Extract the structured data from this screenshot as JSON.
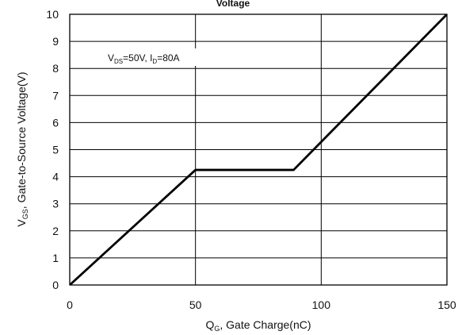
{
  "chart_data": {
    "type": "line",
    "title": "Voltage",
    "xlabel": "Q",
    "xlabel_sub": "G",
    "xlabel_rest": ", Gate Charge(nC)",
    "ylabel": "V",
    "ylabel_sub": "GS",
    "ylabel_rest": ", Gate-to-Source Voltage(V)",
    "xlim": [
      0,
      150
    ],
    "ylim": [
      0,
      10
    ],
    "xticks": [
      0,
      50,
      100,
      150
    ],
    "yticks": [
      0,
      1,
      2,
      3,
      4,
      5,
      6,
      7,
      8,
      9,
      10
    ],
    "grid": true,
    "annotation": {
      "main1": "V",
      "sub1": "DS",
      "main2": "=50V, I",
      "sub2": "D",
      "main3": "=80A"
    },
    "series": [
      {
        "x": [
          0,
          50,
          89,
          150
        ],
        "y": [
          0,
          4.25,
          4.25,
          10
        ]
      }
    ],
    "colors": {
      "line": "#000000",
      "grid": "#000000",
      "background": "#ffffff"
    }
  }
}
